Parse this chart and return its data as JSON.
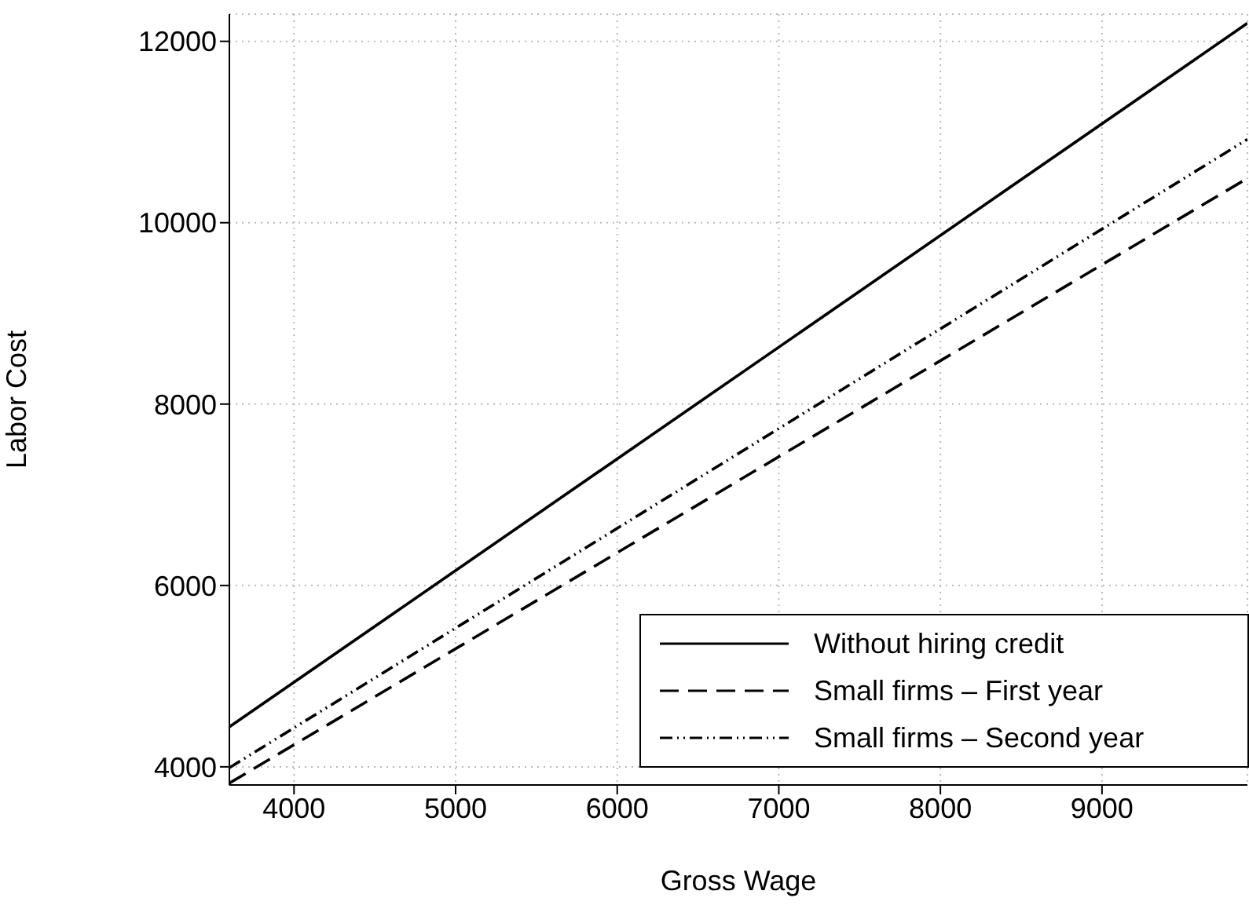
{
  "chart_data": {
    "type": "line",
    "xlabel": "Gross Wage",
    "ylabel": "Labor Cost",
    "x": [
      3600,
      9900
    ],
    "series": [
      {
        "name": "Without hiring credit",
        "color": "#000000",
        "line_style": "solid",
        "values": [
          4440,
          12200
        ]
      },
      {
        "name": "Small firms – First year",
        "color": "#000000",
        "line_style": "dashed",
        "values": [
          3820,
          10490
        ]
      },
      {
        "name": "Small firms – Second year",
        "color": "#000000",
        "line_style": "dashdot",
        "values": [
          3990,
          10920
        ]
      }
    ],
    "xlim": [
      3600,
      9900
    ],
    "xticks": [
      4000,
      5000,
      6000,
      7000,
      8000,
      9000
    ],
    "ylim": [
      3800,
      12300
    ],
    "yticks": [
      4000,
      6000,
      8000,
      10000,
      12000
    ],
    "grid": true,
    "legend": "bottom right",
    "marker": "none"
  }
}
